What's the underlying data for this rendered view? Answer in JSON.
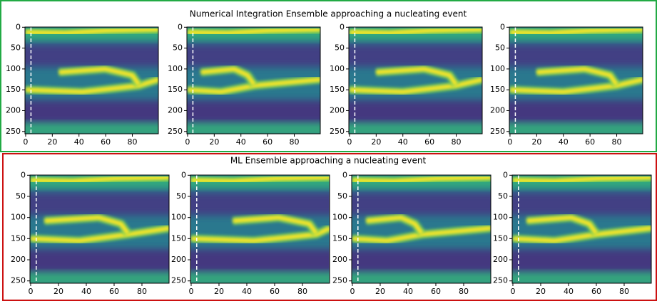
{
  "figure_titles": [
    "Numerical Integration Ensemble approaching a nucleating event",
    "ML Ensemble approaching a nucleating event"
  ],
  "chart_data": [
    {
      "type": "heatmap",
      "xlim": [
        -0.5,
        99.5
      ],
      "ylim": [
        255.5,
        -0.5
      ],
      "xticks": [
        0,
        20,
        40,
        60,
        80
      ],
      "yticks": [
        0,
        50,
        100,
        150,
        200,
        250
      ],
      "vline_x": 4
    },
    {
      "type": "heatmap",
      "xlim": [
        -0.5,
        99.5
      ],
      "ylim": [
        255.5,
        -0.5
      ],
      "xticks": [
        0,
        20,
        40,
        60,
        80
      ],
      "yticks": [
        0,
        50,
        100,
        150,
        200,
        250
      ],
      "vline_x": 4
    },
    {
      "type": "heatmap",
      "xlim": [
        -0.5,
        99.5
      ],
      "ylim": [
        255.5,
        -0.5
      ],
      "xticks": [
        0,
        20,
        40,
        60,
        80
      ],
      "yticks": [
        0,
        50,
        100,
        150,
        200,
        250
      ],
      "vline_x": 4
    },
    {
      "type": "heatmap",
      "xlim": [
        -0.5,
        99.5
      ],
      "ylim": [
        255.5,
        -0.5
      ],
      "xticks": [
        0,
        20,
        40,
        60,
        80
      ],
      "yticks": [
        0,
        50,
        100,
        150,
        200,
        250
      ],
      "vline_x": 4
    },
    {
      "type": "heatmap",
      "xlim": [
        -0.5,
        99.5
      ],
      "ylim": [
        255.5,
        -0.5
      ],
      "xticks": [
        0,
        20,
        40,
        60,
        80
      ],
      "yticks": [
        0,
        50,
        100,
        150,
        200,
        250
      ],
      "vline_x": 4
    },
    {
      "type": "heatmap",
      "xlim": [
        -0.5,
        99.5
      ],
      "ylim": [
        255.5,
        -0.5
      ],
      "xticks": [
        0,
        20,
        40,
        60,
        80
      ],
      "yticks": [
        0,
        50,
        100,
        150,
        200,
        250
      ],
      "vline_x": 4
    },
    {
      "type": "heatmap",
      "xlim": [
        -0.5,
        99.5
      ],
      "ylim": [
        255.5,
        -0.5
      ],
      "xticks": [
        0,
        20,
        40,
        60,
        80
      ],
      "yticks": [
        0,
        50,
        100,
        150,
        200,
        250
      ],
      "vline_x": 4
    },
    {
      "type": "heatmap",
      "xlim": [
        -0.5,
        99.5
      ],
      "ylim": [
        255.5,
        -0.5
      ],
      "xticks": [
        0,
        20,
        40,
        60,
        80
      ],
      "yticks": [
        0,
        50,
        100,
        150,
        200,
        250
      ],
      "vline_x": 4
    }
  ]
}
